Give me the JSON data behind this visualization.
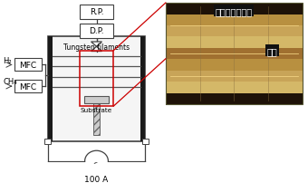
{
  "bg_color": "white",
  "rp_label": "R.P.",
  "dp_label": "D.P.",
  "label_filaments": "Tungsten filaments",
  "label_substrate": "Substrate",
  "label_h2": "H₂",
  "label_ch4": "CH₄",
  "label_100a": "100 A",
  "mfc_label": "MFC",
  "japanese_top": "熱フィラメント",
  "japanese_bot": "基板",
  "line_color": "#404040",
  "red_color": "#cc0000",
  "photo_bg_dark": "#3a2a10",
  "photo_stripe_colors": [
    "#2a1a08",
    "#c8a458",
    "#b89040",
    "#d4b468",
    "#a07830",
    "#c8a458",
    "#b89040",
    "#d4b468",
    "#8a6828"
  ],
  "photo_label_bg": "#111111",
  "photo_label_color": "white"
}
